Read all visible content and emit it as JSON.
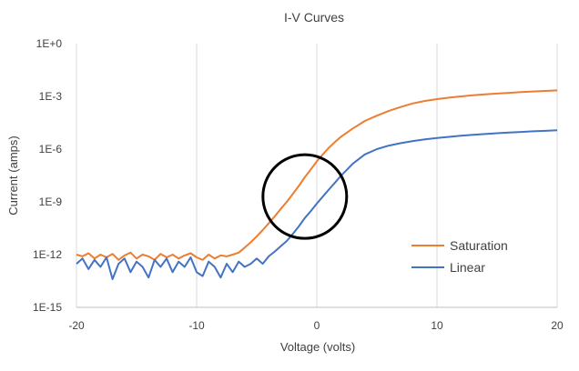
{
  "chart_data": {
    "type": "line",
    "title": "I-V Curves",
    "xlabel": "Voltage (volts)",
    "ylabel": "Current (amps)",
    "xlim": [
      -20,
      20
    ],
    "ylim": [
      1e-15,
      1
    ],
    "yscale": "log",
    "grid": "vertical",
    "legend_position": "bottom-right",
    "x_ticks": [
      -20,
      -10,
      0,
      10,
      20
    ],
    "x_tick_labels": [
      "-20",
      "-10",
      "0",
      "10",
      "20"
    ],
    "y_ticks": [
      1e-15,
      1e-12,
      1e-09,
      1e-06,
      0.001,
      1
    ],
    "y_tick_labels": [
      "1E-15",
      "1E-12",
      "1E-9",
      "1E-6",
      "1E-3",
      "1E+0"
    ],
    "series": [
      {
        "name": "Saturation",
        "color": "#ED7D31",
        "x": [
          -20,
          -19.5,
          -19,
          -18.5,
          -18,
          -17.5,
          -17,
          -16.5,
          -16,
          -15.5,
          -15,
          -14.5,
          -14,
          -13.5,
          -13,
          -12.5,
          -12,
          -11.5,
          -11,
          -10.5,
          -10,
          -9.5,
          -9,
          -8.5,
          -8,
          -7.5,
          -7,
          -6.5,
          -6,
          -5.5,
          -5,
          -4.5,
          -4,
          -3.5,
          -3,
          -2.5,
          -2,
          -1.5,
          -1,
          -0.5,
          0,
          0.5,
          1,
          1.5,
          2,
          3,
          4,
          5,
          6,
          7,
          8,
          9,
          10,
          11,
          12,
          13,
          14,
          15,
          16,
          17,
          18,
          19,
          20
        ],
        "y": [
          1e-12,
          8e-13,
          1.2e-12,
          6e-13,
          1e-12,
          7e-13,
          1.1e-12,
          5e-13,
          9e-13,
          1.3e-12,
          6e-13,
          1e-12,
          8e-13,
          5e-13,
          1.1e-12,
          7e-13,
          1e-12,
          6e-13,
          9e-13,
          1.2e-12,
          7e-13,
          5e-13,
          1e-12,
          6e-13,
          9e-13,
          8e-13,
          1e-12,
          1.3e-12,
          2.5e-12,
          5e-12,
          1.1e-11,
          2.5e-11,
          6e-11,
          1.5e-10,
          4e-10,
          1e-09,
          2.8e-09,
          8e-09,
          2.5e-08,
          7e-08,
          2e-07,
          5e-07,
          1.2e-06,
          2.5e-06,
          5e-06,
          1.5e-05,
          4e-05,
          8e-05,
          0.00015,
          0.00025,
          0.0004,
          0.00055,
          0.0007,
          0.00085,
          0.001,
          0.00115,
          0.0013,
          0.00145,
          0.0016,
          0.00175,
          0.0019,
          0.00205,
          0.0022
        ]
      },
      {
        "name": "Linear",
        "color": "#4472C4",
        "x": [
          -20,
          -19.5,
          -19,
          -18.5,
          -18,
          -17.5,
          -17,
          -16.5,
          -16,
          -15.5,
          -15,
          -14.5,
          -14,
          -13.5,
          -13,
          -12.5,
          -12,
          -11.5,
          -11,
          -10.5,
          -10,
          -9.5,
          -9,
          -8.5,
          -8,
          -7.5,
          -7,
          -6.5,
          -6,
          -5.5,
          -5,
          -4.5,
          -4,
          -3.5,
          -3,
          -2.5,
          -2,
          -1.5,
          -1,
          -0.5,
          0,
          0.5,
          1,
          1.5,
          2,
          3,
          4,
          5,
          6,
          7,
          8,
          9,
          10,
          11,
          12,
          13,
          14,
          15,
          16,
          17,
          18,
          19,
          20
        ],
        "y": [
          3e-13,
          6e-13,
          1.5e-13,
          5e-13,
          2e-13,
          7e-13,
          4e-14,
          3e-13,
          6e-13,
          1e-13,
          4e-13,
          2e-13,
          5e-14,
          5e-13,
          2e-13,
          6e-13,
          1e-13,
          4e-13,
          2e-13,
          7e-13,
          1e-13,
          6e-14,
          4e-13,
          2e-13,
          5e-14,
          3e-13,
          1e-13,
          4e-13,
          2e-13,
          3e-13,
          6e-13,
          3e-13,
          8e-13,
          1.5e-12,
          3e-12,
          6e-12,
          1.5e-11,
          4e-11,
          1.2e-10,
          3e-10,
          8e-10,
          2e-09,
          5e-09,
          1.2e-08,
          3e-08,
          1.5e-07,
          5e-07,
          1e-06,
          1.6e-06,
          2.2e-06,
          2.9e-06,
          3.6e-06,
          4.3e-06,
          5e-06,
          5.8e-06,
          6.5e-06,
          7.2e-06,
          8e-06,
          8.8e-06,
          9.5e-06,
          1.03e-05,
          1.1e-05,
          1.18e-05
        ]
      }
    ],
    "annotations": [
      {
        "type": "circle",
        "center": [
          -1,
          2e-09
        ],
        "stroke": "#000000"
      }
    ]
  }
}
